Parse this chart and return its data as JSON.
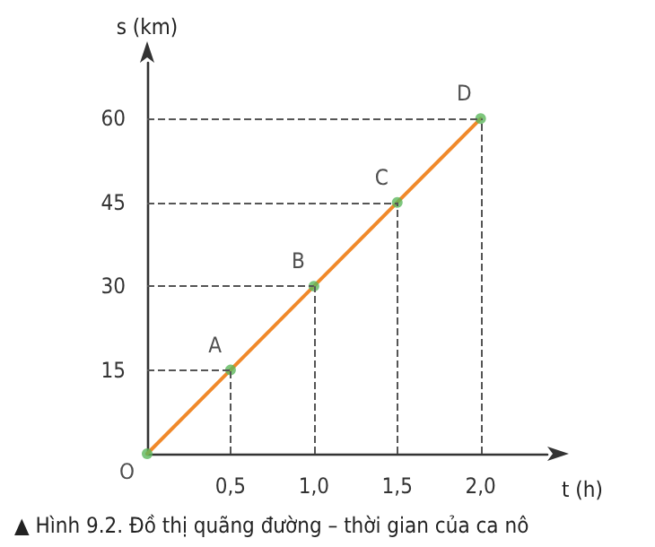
{
  "chart_data": {
    "type": "line",
    "xlabel": "t (h)",
    "ylabel": "s (km)",
    "x": [
      0,
      0.5,
      1,
      1.5,
      2
    ],
    "series": [
      {
        "type": "line",
        "color": "#f0892a",
        "values": [
          0,
          15,
          30,
          45,
          60
        ],
        "marker": "none"
      },
      {
        "type": "scatter",
        "color": "#5cb85c",
        "values": [
          0,
          15,
          30,
          45,
          60
        ],
        "marker": "circle"
      }
    ],
    "xlim": [
      0,
      2.4
    ],
    "ylim": [
      0,
      70
    ],
    "xticks": [
      {
        "value": 0.5,
        "label": "0,5"
      },
      {
        "value": 1,
        "label": "1,0"
      },
      {
        "value": 1.5,
        "label": "1,5"
      },
      {
        "value": 2,
        "label": "2,0"
      }
    ],
    "yticks": [
      15,
      30,
      45,
      60
    ],
    "ref_lines": [
      {
        "axis": "y",
        "value": 15,
        "line_style": "dashed",
        "color": "#555555"
      },
      {
        "axis": "y",
        "value": 30,
        "line_style": "dashed",
        "color": "#555555"
      },
      {
        "axis": "y",
        "value": 45,
        "line_style": "dashed",
        "color": "#555555"
      },
      {
        "axis": "y",
        "value": 60,
        "line_style": "dashed",
        "color": "#555555"
      },
      {
        "axis": "x",
        "value": 0.5,
        "line_style": "dashed",
        "color": "#555555"
      },
      {
        "axis": "x",
        "value": 1,
        "line_style": "dashed",
        "color": "#555555"
      },
      {
        "axis": "x",
        "value": 1.5,
        "line_style": "dashed",
        "color": "#555555"
      },
      {
        "axis": "x",
        "value": 2,
        "line_style": "dashed",
        "color": "#555555"
      }
    ],
    "annotations": [
      {
        "text": "O",
        "x": 0,
        "y": 0
      },
      {
        "text": "A",
        "x": 0.5,
        "y": 15
      },
      {
        "text": "B",
        "x": 1,
        "y": 30
      },
      {
        "text": "C",
        "x": 1.5,
        "y": 45
      },
      {
        "text": "D",
        "x": 2,
        "y": 60
      },
      "▲ Hình 9.2. Đồ thị quãng đường – thời gian của ca nô"
    ],
    "grid": false
  }
}
